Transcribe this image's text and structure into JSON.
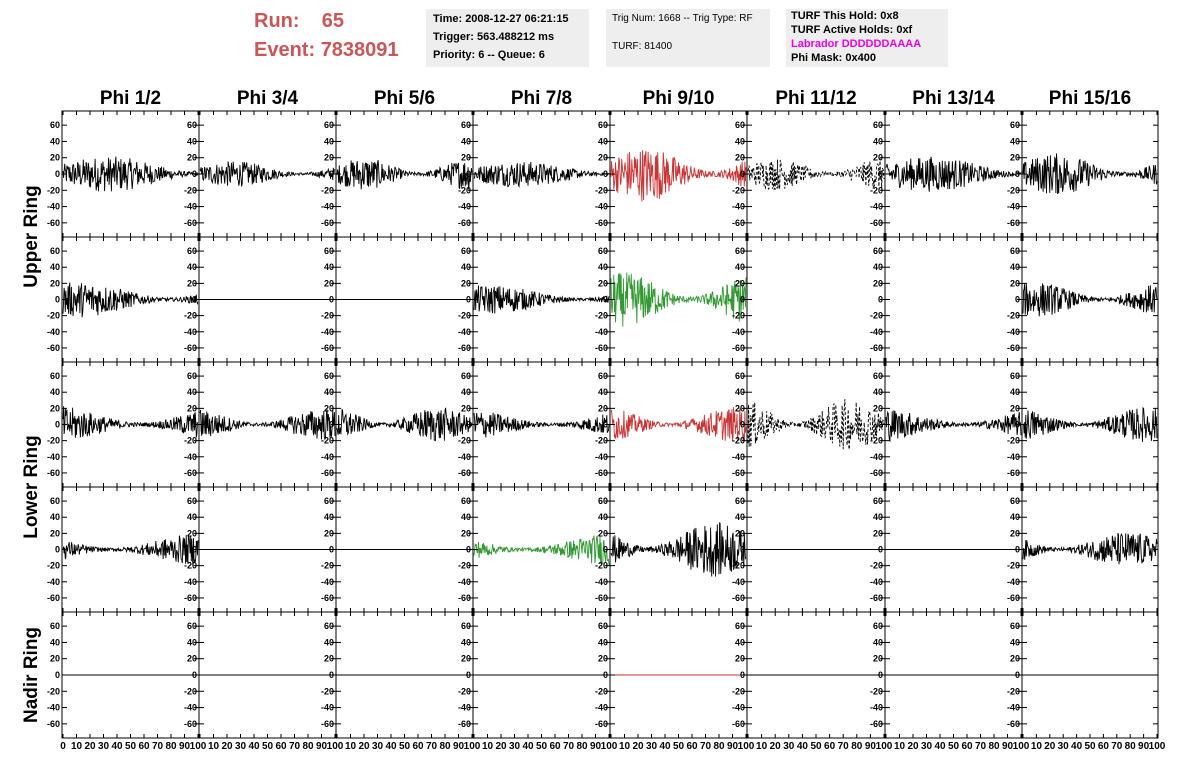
{
  "header": {
    "run_label": "Run:",
    "run_value": "65",
    "event_label": "Event:",
    "event_value": "7838091",
    "box_time": {
      "time": "Time: 2008-12-27 06:21:15",
      "trigger": "Trigger: 563.488212 ms",
      "priority": "Priority: 6 -- Queue: 6"
    },
    "box_trig": {
      "trig": "Trig Num: 1668 -- Trig Type: RF",
      "turf": "TURF: 81400"
    },
    "box_turf": {
      "this_hold": "TURF This Hold: 0x8",
      "active_holds": "TURF Active Holds: 0xf",
      "labrador": "Labrador DDDDDDAAAA",
      "phi_mask": "Phi Mask: 0x400"
    }
  },
  "colors": {
    "black": "#000000",
    "red": "#cc3333",
    "green": "#339933",
    "magenta": "#ee00ee",
    "run_text": "#cc5555",
    "box_bg": "#eeeeee"
  },
  "chart_data": {
    "type": "line",
    "title": "",
    "columns": [
      "Phi 1/2",
      "Phi 3/4",
      "Phi 5/6",
      "Phi 7/8",
      "Phi 9/10",
      "Phi 11/12",
      "Phi 13/14",
      "Phi 15/16"
    ],
    "rows": [
      "Upper Ring",
      "Lower Ring",
      "Nadir Ring"
    ],
    "subrows_per_ring": {
      "Upper Ring": 2,
      "Lower Ring": 2,
      "Nadir Ring": 1
    },
    "x_range": [
      0,
      100
    ],
    "y_range": [
      -70,
      70
    ],
    "y_ticks": [
      -60,
      -40,
      -20,
      0,
      20,
      40,
      60
    ],
    "x_ticks": [
      0,
      10,
      20,
      30,
      40,
      50,
      60,
      70,
      80,
      90,
      100
    ],
    "x_tick_labels": [
      "0",
      "10",
      "20",
      "30",
      "40",
      "50",
      "60",
      "70",
      "80",
      "90",
      "100"
    ],
    "panels": [
      [
        {
          "style": "noise",
          "amp": 22,
          "color": "black"
        },
        {
          "style": "noise",
          "amp": 16,
          "color": "black"
        },
        {
          "style": "noise",
          "amp": 20,
          "color": "black"
        },
        {
          "style": "noise",
          "amp": 16,
          "color": "black"
        },
        {
          "style": "noise",
          "amp": 34,
          "color": "red"
        },
        {
          "style": "dashed",
          "amp": 20,
          "color": "black"
        },
        {
          "style": "noise",
          "amp": 22,
          "color": "black"
        },
        {
          "style": "noise",
          "amp": 26,
          "color": "black"
        }
      ],
      [
        {
          "style": "noise",
          "amp": 22,
          "color": "black"
        },
        {
          "style": "flat",
          "amp": 0,
          "color": "black"
        },
        {
          "style": "flat",
          "amp": 0,
          "color": "black"
        },
        {
          "style": "noise",
          "amp": 18,
          "color": "black"
        },
        {
          "style": "noise",
          "amp": 34,
          "color": "green"
        },
        {
          "style": "none",
          "amp": 0,
          "color": "black"
        },
        {
          "style": "none",
          "amp": 0,
          "color": "black"
        },
        {
          "style": "noise",
          "amp": 22,
          "color": "black"
        }
      ],
      [
        {
          "style": "noise",
          "amp": 24,
          "color": "black"
        },
        {
          "style": "noise",
          "amp": 20,
          "color": "black"
        },
        {
          "style": "noise",
          "amp": 22,
          "color": "black"
        },
        {
          "style": "noise",
          "amp": 20,
          "color": "black"
        },
        {
          "style": "noise",
          "amp": 22,
          "color": "red"
        },
        {
          "style": "dashed",
          "amp": 32,
          "color": "black"
        },
        {
          "style": "noise",
          "amp": 22,
          "color": "black"
        },
        {
          "style": "noise",
          "amp": 22,
          "color": "black"
        }
      ],
      [
        {
          "style": "noise",
          "amp": 20,
          "color": "black"
        },
        {
          "style": "flat",
          "amp": 0,
          "color": "black"
        },
        {
          "style": "flat",
          "amp": 0,
          "color": "black"
        },
        {
          "style": "noise",
          "amp": 20,
          "color": "green"
        },
        {
          "style": "noise",
          "amp": 34,
          "color": "black"
        },
        {
          "style": "flat",
          "amp": 0,
          "color": "black"
        },
        {
          "style": "flat",
          "amp": 0,
          "color": "black"
        },
        {
          "style": "noise",
          "amp": 22,
          "color": "black"
        }
      ],
      [
        {
          "style": "flat",
          "amp": 0,
          "color": "black"
        },
        {
          "style": "flat",
          "amp": 0,
          "color": "black"
        },
        {
          "style": "flat",
          "amp": 0,
          "color": "black"
        },
        {
          "style": "flat",
          "amp": 0,
          "color": "black"
        },
        {
          "style": "flat",
          "amp": 0,
          "color": "red"
        },
        {
          "style": "flat",
          "amp": 0,
          "color": "black"
        },
        {
          "style": "flat",
          "amp": 0,
          "color": "black"
        },
        {
          "style": "flat",
          "amp": 0,
          "color": "black"
        }
      ]
    ]
  }
}
